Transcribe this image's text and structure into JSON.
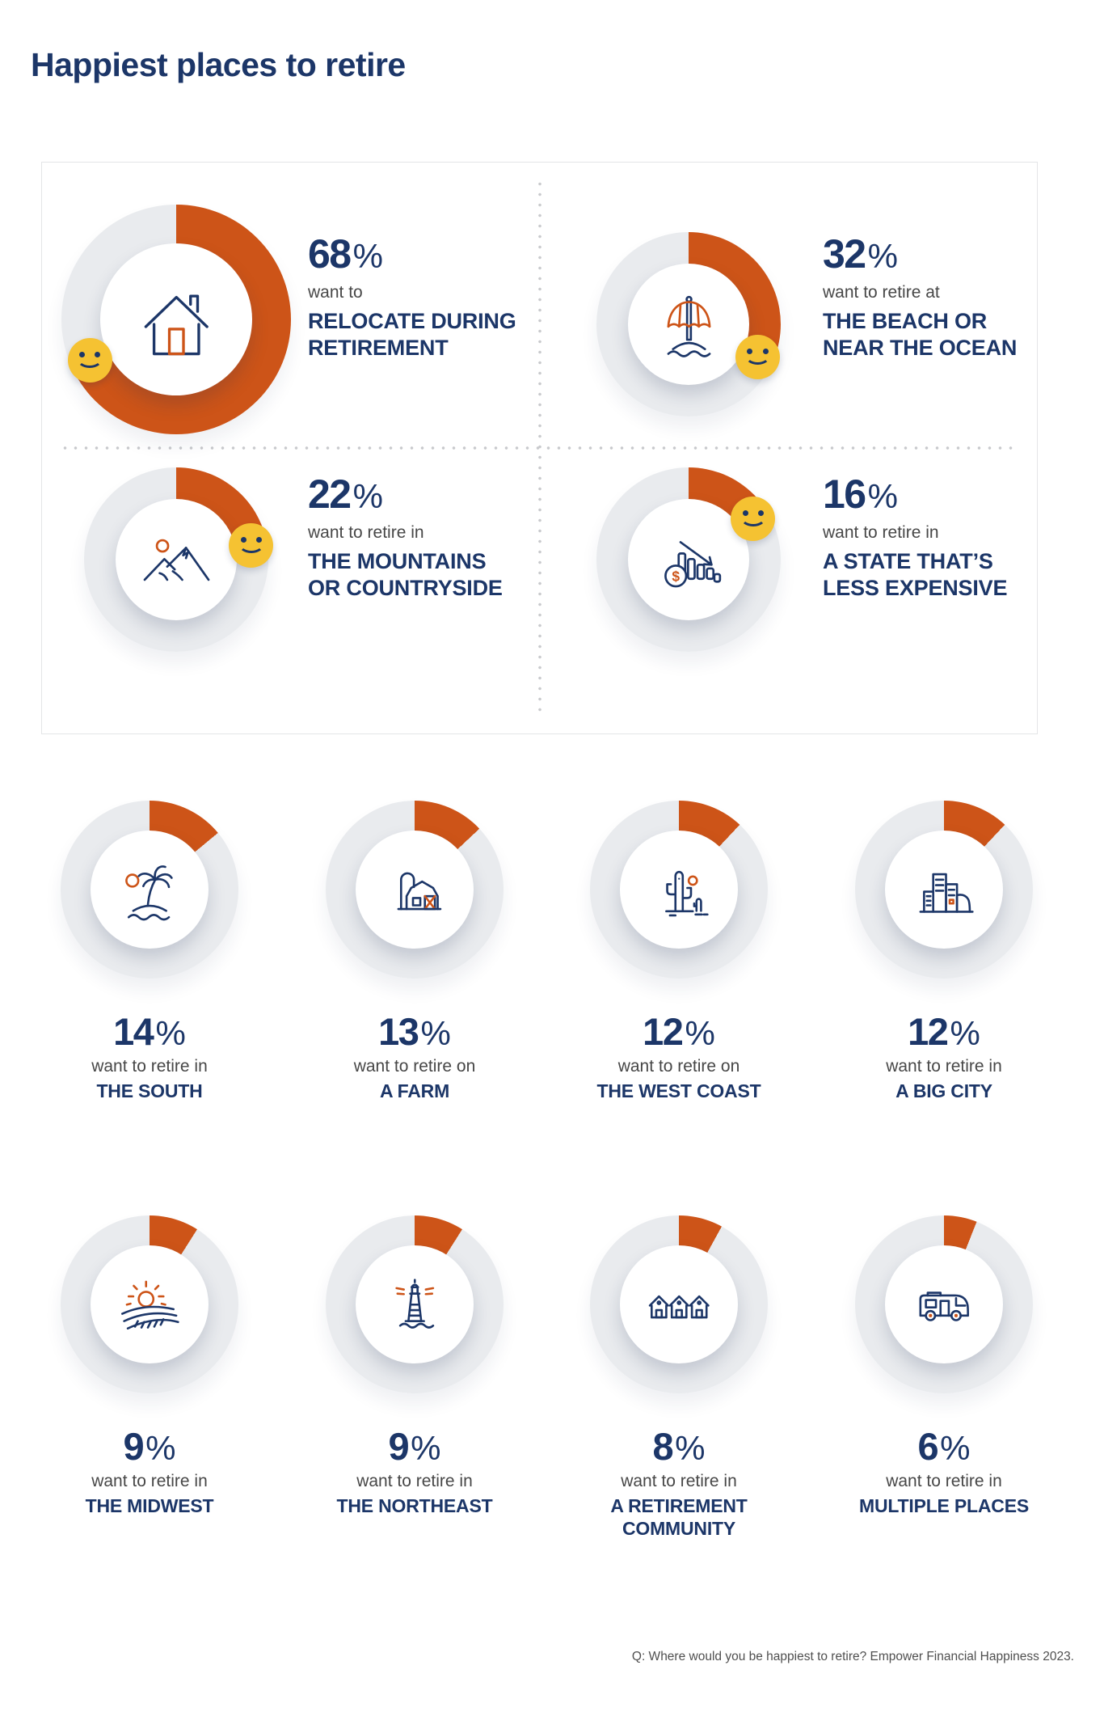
{
  "page": {
    "title": "Happiest places to retire",
    "footer": "Q: Where would you be happiest to retire? Empower Financial Happiness 2023."
  },
  "colors": {
    "navy": "#1c3668",
    "orange": "#cd5418",
    "track": "#e9ebee",
    "smiley": "#f5c232"
  },
  "chart_data": {
    "type": "pie",
    "subtype": "donut-infographic",
    "percent_sign": "%",
    "featured": [
      {
        "value": 68,
        "prefix": "want to",
        "label": "RELOCATE DURING\nRETIREMENT",
        "icon": "house-icon",
        "smiley": true
      },
      {
        "value": 32,
        "prefix": "want to retire at",
        "label": "THE  BEACH OR\nNEAR THE OCEAN",
        "icon": "beach-umbrella-icon",
        "smiley": true
      },
      {
        "value": 22,
        "prefix": "want to retire in",
        "label": "THE MOUNTAINS\nOR COUNTRYSIDE",
        "icon": "mountains-icon",
        "smiley": true
      },
      {
        "value": 16,
        "prefix": "want to retire in",
        "label": "A STATE THAT’S\nLESS EXPENSIVE",
        "icon": "declining-chart-icon",
        "smiley": true
      }
    ],
    "grid": [
      {
        "value": 14,
        "prefix": "want to retire in",
        "label": "THE SOUTH",
        "icon": "palm-island-icon"
      },
      {
        "value": 13,
        "prefix": "want to retire on",
        "label": "A FARM",
        "icon": "barn-icon"
      },
      {
        "value": 12,
        "prefix": "want to retire on",
        "label": "THE WEST COAST",
        "icon": "cactus-icon"
      },
      {
        "value": 12,
        "prefix": "want to retire in",
        "label": "A BIG CITY",
        "icon": "city-icon"
      },
      {
        "value": 9,
        "prefix": "want to retire in",
        "label": "THE MIDWEST",
        "icon": "field-sun-icon"
      },
      {
        "value": 9,
        "prefix": "want to retire in",
        "label": "THE NORTHEAST",
        "icon": "lighthouse-icon"
      },
      {
        "value": 8,
        "prefix": "want to retire in",
        "label": "A RETIREMENT\nCOMMUNITY",
        "icon": "houses-icon"
      },
      {
        "value": 6,
        "prefix": "want to retire in",
        "label": "MULTIPLE PLACES",
        "icon": "rv-icon"
      }
    ]
  }
}
